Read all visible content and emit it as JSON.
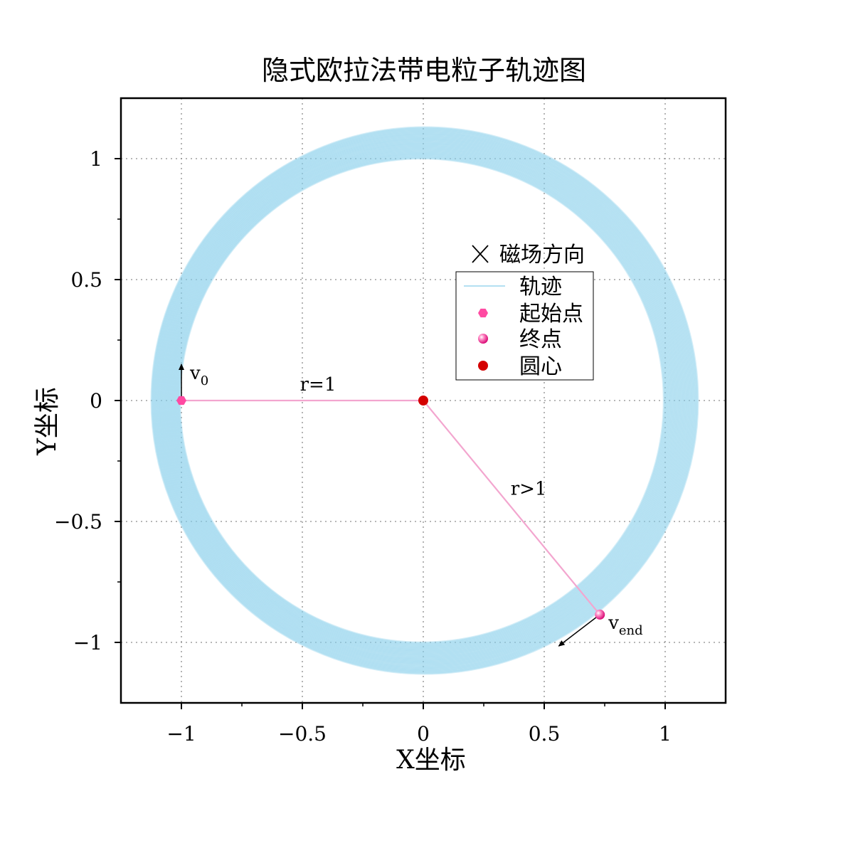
{
  "chart_data": {
    "type": "line",
    "title": "隐式欧拉法带电粒子轨迹图",
    "xlabel": "X坐标",
    "ylabel": "Y坐标",
    "xlim": [
      -1.25,
      1.25
    ],
    "ylim": [
      -1.25,
      1.25
    ],
    "xticks": [
      -1,
      -0.5,
      0,
      0.5,
      1
    ],
    "yticks": [
      -1,
      -0.5,
      0,
      0.5,
      1
    ],
    "xtick_labels": [
      "-1",
      "-0.5",
      "0",
      "0.5",
      "1"
    ],
    "ytick_labels": [
      "-1",
      "-0.5",
      "0",
      "0.5",
      "1"
    ],
    "grid": true,
    "legend_placement": "center-right",
    "magnetic_field_label": "磁场方向",
    "series": [
      {
        "name": "轨迹",
        "type": "line",
        "color": "#87ceeb",
        "inner_radius": 1.0,
        "outer_radius": 1.13,
        "center": [
          0,
          0
        ],
        "end_angle_deg": -50.5
      },
      {
        "name": "起始点",
        "type": "marker",
        "marker": "hexagon",
        "color": "#ff4aa2",
        "x": -1,
        "y": 0
      },
      {
        "name": "终点",
        "type": "marker",
        "marker": "sphere",
        "color": "#f23d96",
        "x": 0.73,
        "y": -0.885
      },
      {
        "name": "圆心",
        "type": "marker",
        "marker": "circle",
        "color": "#d40000",
        "x": 0,
        "y": 0
      }
    ],
    "annotations": {
      "radius_start_label": "r=1",
      "radius_end_label": "r>1",
      "v0_label": "v",
      "v0_sub": "0",
      "vend_label": "v",
      "vend_sub": "end",
      "v0_vector": {
        "from": [
          -1,
          0
        ],
        "to": [
          -1,
          0.15
        ]
      },
      "vend_vector": {
        "from": [
          0.73,
          -0.885
        ],
        "to": [
          0.56,
          -1.015
        ]
      },
      "radius_line_color": "#f3a6cf"
    }
  }
}
